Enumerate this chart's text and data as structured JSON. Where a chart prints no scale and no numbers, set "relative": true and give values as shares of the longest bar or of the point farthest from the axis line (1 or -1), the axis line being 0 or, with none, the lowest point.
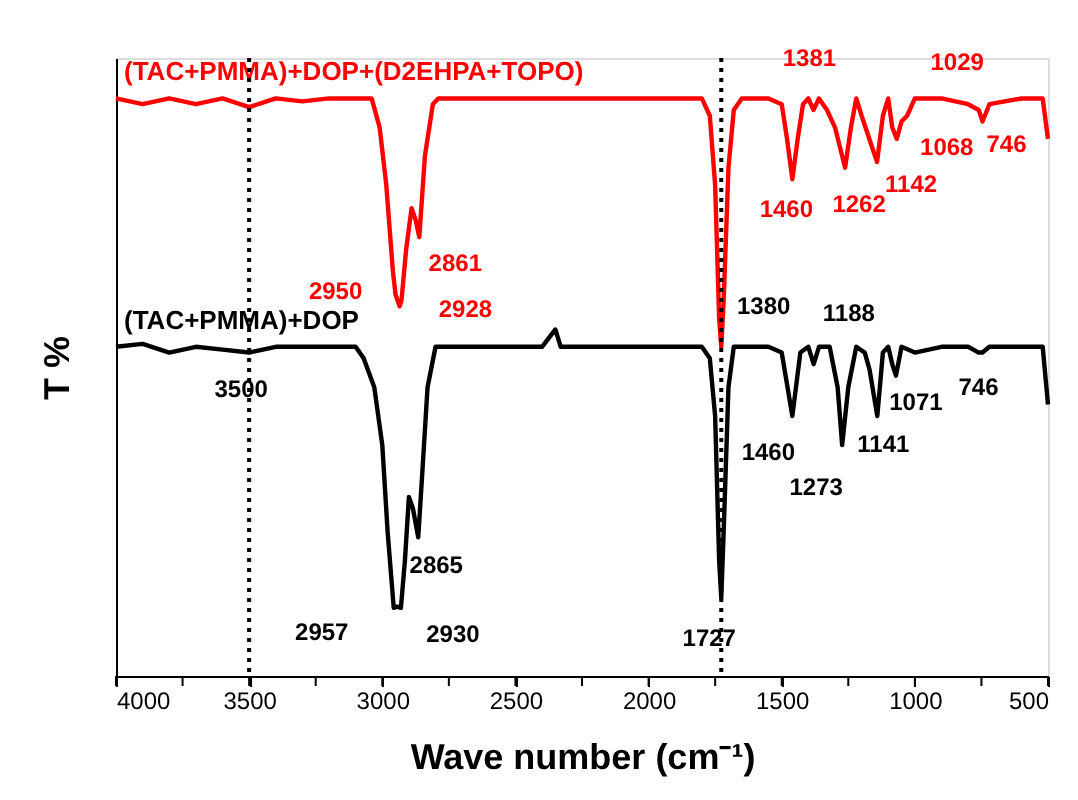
{
  "chart_data": {
    "type": "line",
    "relative": true,
    "xlabel": "Wave number  (cm⁻¹)",
    "ylabel": "T %",
    "legend": false,
    "grid": false,
    "line_style": "solid",
    "marker": "none",
    "x": [
      4000,
      3900,
      3800,
      3700,
      3600,
      3500,
      3400,
      3300,
      3200,
      3100,
      3040,
      3010,
      2985,
      2960,
      2950,
      2935,
      2928,
      2910,
      2890,
      2875,
      2861,
      2840,
      2810,
      2790,
      2600,
      2400,
      2200,
      2000,
      1800,
      1770,
      1750,
      1735,
      1727,
      1718,
      1700,
      1680,
      1650,
      1550,
      1500,
      1480,
      1460,
      1440,
      1420,
      1400,
      1381,
      1360,
      1330,
      1300,
      1262,
      1240,
      1220,
      1200,
      1142,
      1120,
      1100,
      1085,
      1068,
      1050,
      1029,
      1000,
      900,
      800,
      760,
      746,
      720,
      600,
      520,
      500
    ],
    "series": [
      {
        "name": "(TAC+PMMA)+DOP+(D2EHPA+TOPO)",
        "color": "#ff0000",
        "values": [
          1.0,
          0.99,
          1.0,
          0.99,
          1.0,
          0.985,
          1.0,
          0.995,
          1.0,
          1.0,
          1.0,
          0.95,
          0.85,
          0.7,
          0.66,
          0.64,
          0.65,
          0.74,
          0.81,
          0.79,
          0.76,
          0.9,
          0.99,
          1.0,
          1.0,
          1.0,
          1.0,
          1.0,
          1.0,
          0.97,
          0.85,
          0.62,
          0.57,
          0.65,
          0.88,
          0.98,
          1.0,
          1.0,
          0.99,
          0.93,
          0.86,
          0.93,
          0.99,
          1.0,
          0.98,
          1.0,
          0.98,
          0.95,
          0.88,
          0.95,
          1.0,
          0.97,
          0.89,
          0.97,
          1.0,
          0.95,
          0.93,
          0.96,
          0.97,
          1.0,
          1.0,
          0.99,
          0.98,
          0.96,
          0.99,
          1.0,
          1.0,
          0.93
        ]
      },
      {
        "name": "(TAC+PMMA)+DOP",
        "color": "#000000",
        "x": [
          4000,
          3900,
          3800,
          3700,
          3600,
          3500,
          3400,
          3300,
          3200,
          3100,
          3070,
          3030,
          3000,
          2980,
          2957,
          2945,
          2930,
          2915,
          2900,
          2885,
          2865,
          2850,
          2830,
          2800,
          2600,
          2400,
          2350,
          2330,
          2000,
          1800,
          1770,
          1750,
          1735,
          1727,
          1718,
          1700,
          1680,
          1600,
          1550,
          1500,
          1460,
          1430,
          1400,
          1380,
          1360,
          1320,
          1290,
          1273,
          1250,
          1220,
          1188,
          1170,
          1141,
          1120,
          1100,
          1085,
          1071,
          1050,
          1000,
          900,
          800,
          760,
          746,
          720,
          600,
          520,
          500
        ],
        "values": [
          0.57,
          0.575,
          0.56,
          0.57,
          0.565,
          0.56,
          0.57,
          0.57,
          0.57,
          0.57,
          0.55,
          0.5,
          0.4,
          0.25,
          0.118,
          0.12,
          0.118,
          0.2,
          0.31,
          0.29,
          0.24,
          0.35,
          0.5,
          0.57,
          0.57,
          0.57,
          0.6,
          0.57,
          0.57,
          0.57,
          0.55,
          0.45,
          0.2,
          0.135,
          0.25,
          0.5,
          0.57,
          0.57,
          0.57,
          0.56,
          0.45,
          0.56,
          0.57,
          0.54,
          0.57,
          0.57,
          0.5,
          0.4,
          0.5,
          0.57,
          0.56,
          0.53,
          0.45,
          0.56,
          0.57,
          0.54,
          0.52,
          0.57,
          0.56,
          0.57,
          0.57,
          0.56,
          0.56,
          0.57,
          0.57,
          0.57,
          0.47
        ]
      }
    ],
    "xlim": [
      4000,
      500
    ],
    "xticks": [
      4000,
      {
        "value": 3750,
        "label": null
      },
      3500,
      {
        "value": 3250,
        "label": null
      },
      3000,
      {
        "value": 2750,
        "label": null
      },
      2500,
      {
        "value": 2250,
        "label": null
      },
      2000,
      {
        "value": 1750,
        "label": null
      },
      1500,
      {
        "value": 1250,
        "label": null
      },
      1000,
      {
        "value": 750,
        "label": null
      },
      500
    ],
    "ref_lines": [
      {
        "axis": "x",
        "value": 3500,
        "color": "#000000",
        "line_style": "dotted"
      },
      {
        "axis": "x",
        "value": 1727,
        "color": "#000000",
        "line_style": "dotted"
      }
    ],
    "annotations": [
      {
        "text": "2950",
        "x": 2950,
        "y": 0.66
      },
      {
        "text": "2928",
        "x": 2928,
        "y": 0.65
      },
      {
        "text": "2861",
        "x": 2861,
        "y": 0.76
      },
      {
        "text": "1460",
        "x": 1460,
        "y": 0.86
      },
      {
        "text": "1381",
        "x": 1381,
        "y": 0.98
      },
      {
        "text": "1262",
        "x": 1262,
        "y": 0.88
      },
      {
        "text": "1142",
        "x": 1142,
        "y": 0.89
      },
      {
        "text": "1068",
        "x": 1068,
        "y": 0.93
      },
      {
        "text": "1029",
        "x": 1029,
        "y": 0.97
      },
      {
        "text": "746",
        "x": 746,
        "y": 0.96
      },
      {
        "text": "3500",
        "x": 3500,
        "y": 0.56
      },
      {
        "text": "2957",
        "x": 2957,
        "y": 0.118
      },
      {
        "text": "2930",
        "x": 2930,
        "y": 0.118
      },
      {
        "text": "2865",
        "x": 2865,
        "y": 0.24
      },
      {
        "text": "1727",
        "x": 1727,
        "y": 0.135
      },
      {
        "text": "1460",
        "x": 1460,
        "y": 0.45
      },
      {
        "text": "1380",
        "x": 1380,
        "y": 0.54
      },
      {
        "text": "1273",
        "x": 1273,
        "y": 0.4
      },
      {
        "text": "1188",
        "x": 1188,
        "y": 0.56
      },
      {
        "text": "1141",
        "x": 1141,
        "y": 0.45
      },
      {
        "text": "1071",
        "x": 1071,
        "y": 0.52
      },
      {
        "text": "746",
        "x": 746,
        "y": 0.56
      }
    ]
  }
}
